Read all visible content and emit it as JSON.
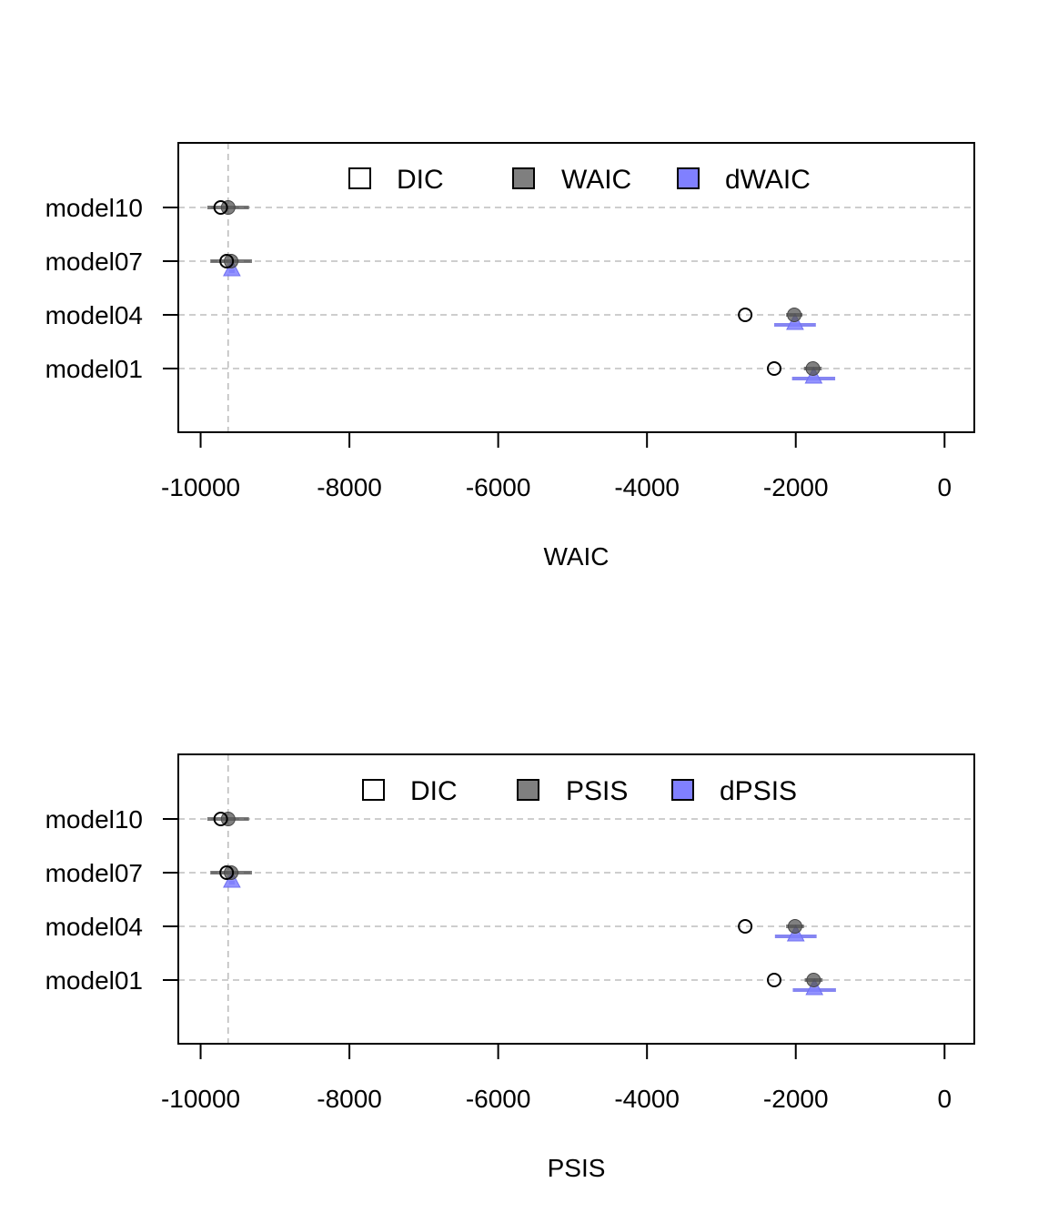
{
  "colors": {
    "dic_fill": "#ffffff",
    "waic_fill": "#7f7f7f",
    "dwaic_fill": "#8080ff",
    "grid": "#bebebe",
    "dwaic_line": "#7070f0"
  },
  "chart_data": [
    {
      "type": "scatter",
      "xlabel": "WAIC",
      "xlim": [
        -10300,
        400
      ],
      "xticks": [
        -10000,
        -8000,
        -6000,
        -4000,
        -2000,
        0
      ],
      "xtick_labels": [
        "-10000",
        "-8000",
        "-6000",
        "-4000",
        "-2000",
        "0"
      ],
      "reference_line_x": -9630,
      "models": [
        "model10",
        "model07",
        "model04",
        "model01"
      ],
      "legend": [
        "DIC",
        "WAIC",
        "dWAIC"
      ],
      "series": [
        {
          "name": "DIC",
          "marker": "open-circle",
          "values": [
            -9730,
            -9650,
            -2680,
            -2290
          ]
        },
        {
          "name": "WAIC",
          "marker": "filled-circle",
          "values": [
            -9630,
            -9590,
            -2020,
            -1770
          ],
          "intervals": [
            [
              -9910,
              -9350
            ],
            [
              -9870,
              -9310
            ],
            [
              -2130,
              -1910
            ],
            [
              -1890,
              -1650
            ]
          ]
        },
        {
          "name": "dWAIC",
          "marker": "triangle",
          "values": [
            null,
            -9580,
            -2010,
            -1760
          ],
          "intervals": [
            null,
            [
              -9620,
              -9540
            ],
            [
              -2290,
              -1730
            ],
            [
              -2050,
              -1470
            ]
          ]
        }
      ]
    },
    {
      "type": "scatter",
      "xlabel": "PSIS",
      "xlim": [
        -10300,
        400
      ],
      "xticks": [
        -10000,
        -8000,
        -6000,
        -4000,
        -2000,
        0
      ],
      "xtick_labels": [
        "-10000",
        "-8000",
        "-6000",
        "-4000",
        "-2000",
        "0"
      ],
      "reference_line_x": -9630,
      "models": [
        "model10",
        "model07",
        "model04",
        "model01"
      ],
      "legend": [
        "DIC",
        "PSIS",
        "dPSIS"
      ],
      "series": [
        {
          "name": "DIC",
          "marker": "open-circle",
          "values": [
            -9730,
            -9650,
            -2680,
            -2290
          ]
        },
        {
          "name": "PSIS",
          "marker": "filled-circle",
          "values": [
            -9630,
            -9590,
            -2010,
            -1760
          ],
          "intervals": [
            [
              -9910,
              -9350
            ],
            [
              -9870,
              -9310
            ],
            [
              -2130,
              -1890
            ],
            [
              -1880,
              -1640
            ]
          ]
        },
        {
          "name": "dPSIS",
          "marker": "triangle",
          "values": [
            null,
            -9580,
            -2000,
            -1750
          ],
          "intervals": [
            null,
            [
              -9620,
              -9540
            ],
            [
              -2280,
              -1720
            ],
            [
              -2040,
              -1460
            ]
          ]
        }
      ]
    }
  ]
}
